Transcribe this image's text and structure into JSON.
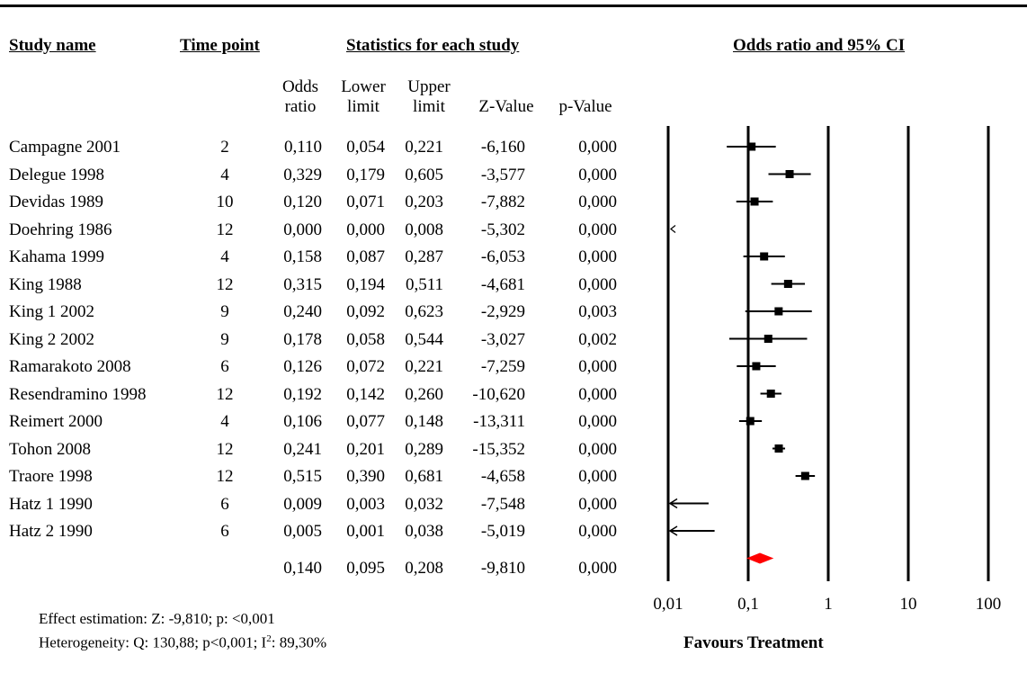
{
  "headers": {
    "study_name": "Study name",
    "time_point": "Time point",
    "statistics": "Statistics for each study",
    "plot": "Odds ratio and 95% CI"
  },
  "subheaders": {
    "odds_1": "Odds",
    "odds_2": "ratio",
    "lower_1": "Lower",
    "lower_2": "limit",
    "upper_1": "Upper",
    "upper_2": "limit",
    "z": "Z-Value",
    "p": "p-Value"
  },
  "rows": [
    {
      "name": "Campagne 2001",
      "tp": "2",
      "or": "0,110",
      "lo": "0,054",
      "hi": "0,221",
      "z": "-6,160",
      "p": "0,000"
    },
    {
      "name": "Delegue 1998",
      "tp": "4",
      "or": "0,329",
      "lo": "0,179",
      "hi": "0,605",
      "z": "-3,577",
      "p": "0,000"
    },
    {
      "name": "Devidas 1989",
      "tp": "10",
      "or": "0,120",
      "lo": "0,071",
      "hi": "0,203",
      "z": "-7,882",
      "p": "0,000"
    },
    {
      "name": "Doehring 1986",
      "tp": "12",
      "or": "0,000",
      "lo": "0,000",
      "hi": "0,008",
      "z": "-5,302",
      "p": "0,000"
    },
    {
      "name": "Kahama 1999",
      "tp": "4",
      "or": "0,158",
      "lo": "0,087",
      "hi": "0,287",
      "z": "-6,053",
      "p": "0,000"
    },
    {
      "name": "King 1988",
      "tp": "12",
      "or": "0,315",
      "lo": "0,194",
      "hi": "0,511",
      "z": "-4,681",
      "p": "0,000"
    },
    {
      "name": "King 1 2002",
      "tp": "9",
      "or": "0,240",
      "lo": "0,092",
      "hi": "0,623",
      "z": "-2,929",
      "p": "0,003"
    },
    {
      "name": "King 2 2002",
      "tp": "9",
      "or": "0,178",
      "lo": "0,058",
      "hi": "0,544",
      "z": "-3,027",
      "p": "0,002"
    },
    {
      "name": "Ramarakoto 2008",
      "tp": "6",
      "or": "0,126",
      "lo": "0,072",
      "hi": "0,221",
      "z": "-7,259",
      "p": "0,000"
    },
    {
      "name": "Resendramino 1998",
      "tp": "12",
      "or": "0,192",
      "lo": "0,142",
      "hi": "0,260",
      "z": "-10,620",
      "p": "0,000"
    },
    {
      "name": "Reimert 2000",
      "tp": "4",
      "or": "0,106",
      "lo": "0,077",
      "hi": "0,148",
      "z": "-13,311",
      "p": "0,000"
    },
    {
      "name": "Tohon 2008",
      "tp": "12",
      "or": "0,241",
      "lo": "0,201",
      "hi": "0,289",
      "z": "-15,352",
      "p": "0,000"
    },
    {
      "name": "Traore 1998",
      "tp": "12",
      "or": "0,515",
      "lo": "0,390",
      "hi": "0,681",
      "z": "-4,658",
      "p": "0,000"
    },
    {
      "name": "Hatz 1 1990",
      "tp": "6",
      "or": "0,009",
      "lo": "0,003",
      "hi": "0,032",
      "z": "-7,548",
      "p": "0,000"
    },
    {
      "name": "Hatz 2 1990",
      "tp": "6",
      "or": "0,005",
      "lo": "0,001",
      "hi": "0,038",
      "z": "-5,019",
      "p": "0,000"
    }
  ],
  "summary": {
    "or": "0,140",
    "lo": "0,095",
    "hi": "0,208",
    "z": "-9,810",
    "p": "0,000"
  },
  "footer": {
    "effect": "Effect estimation: Z: -9,810; p: <0,001",
    "heterogeneity_prefix": "Heterogeneity: Q: 130,88; p<0,001; I",
    "heterogeneity_sup": "2",
    "heterogeneity_suffix": ": 89,30%",
    "favours": "Favours Treatment"
  },
  "chart_data": {
    "type": "forest",
    "x_scale": "log",
    "xlim": [
      0.01,
      100
    ],
    "x_ticks": [
      "0,01",
      "0,1",
      "1",
      "10",
      "100"
    ],
    "x_tick_values": [
      0.01,
      0.1,
      1,
      10,
      100
    ],
    "xlabel": "Favours Treatment",
    "studies": [
      {
        "name": "Campagne 2001",
        "or": 0.11,
        "lo": 0.054,
        "hi": 0.221
      },
      {
        "name": "Delegue 1998",
        "or": 0.329,
        "lo": 0.179,
        "hi": 0.605
      },
      {
        "name": "Devidas 1989",
        "or": 0.12,
        "lo": 0.071,
        "hi": 0.203
      },
      {
        "name": "Doehring 1986",
        "or": 0.0,
        "lo": 0.0,
        "hi": 0.008
      },
      {
        "name": "Kahama 1999",
        "or": 0.158,
        "lo": 0.087,
        "hi": 0.287
      },
      {
        "name": "King 1988",
        "or": 0.315,
        "lo": 0.194,
        "hi": 0.511
      },
      {
        "name": "King 1 2002",
        "or": 0.24,
        "lo": 0.092,
        "hi": 0.623
      },
      {
        "name": "King 2 2002",
        "or": 0.178,
        "lo": 0.058,
        "hi": 0.544
      },
      {
        "name": "Ramarakoto 2008",
        "or": 0.126,
        "lo": 0.072,
        "hi": 0.221
      },
      {
        "name": "Resendramino 1998",
        "or": 0.192,
        "lo": 0.142,
        "hi": 0.26
      },
      {
        "name": "Reimert 2000",
        "or": 0.106,
        "lo": 0.077,
        "hi": 0.148
      },
      {
        "name": "Tohon 2008",
        "or": 0.241,
        "lo": 0.201,
        "hi": 0.289
      },
      {
        "name": "Traore 1998",
        "or": 0.515,
        "lo": 0.39,
        "hi": 0.681
      },
      {
        "name": "Hatz 1 1990",
        "or": 0.009,
        "lo": 0.003,
        "hi": 0.032
      },
      {
        "name": "Hatz 2 1990",
        "or": 0.005,
        "lo": 0.001,
        "hi": 0.038
      }
    ],
    "summary": {
      "or": 0.14,
      "lo": 0.095,
      "hi": 0.208
    },
    "summary_color": "#ff0000"
  }
}
